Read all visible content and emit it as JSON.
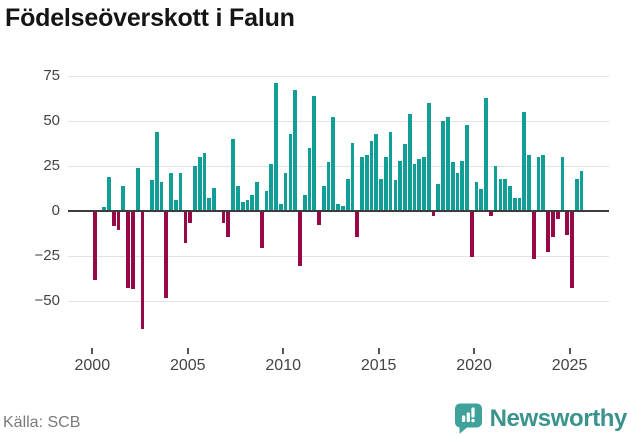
{
  "title": "Födelseöverskott i Falun",
  "source": "Källa: SCB",
  "branding": {
    "name": "Newsworthy"
  },
  "colors": {
    "positive": "#119E96",
    "negative": "#960946",
    "grid": "#e2e2e2",
    "zero_line": "#3c3c3c",
    "axis_text": "#444444",
    "title_text": "#151515",
    "source_text": "#7a7a7a",
    "brand_text": "#3A938C",
    "brand_icon_bg": "#3FA29A",
    "background": "#ffffff"
  },
  "chart_data": {
    "type": "bar",
    "title": "Födelseöverskott i Falun",
    "series_name": "Födelseöverskott (födda minus döda)",
    "frequency": "quarterly",
    "start_period": "2000 Q1",
    "end_period": "2025 Q3",
    "x_tick_labels": [
      "2000",
      "2005",
      "2010",
      "2015",
      "2020",
      "2025"
    ],
    "x_tick_years": [
      2000,
      2005,
      2010,
      2015,
      2020,
      2025
    ],
    "y_tick_values": [
      75,
      50,
      25,
      0,
      -25,
      -50
    ],
    "y_tick_labels": [
      "75",
      "50",
      "25",
      "0",
      "−25",
      "−50"
    ],
    "ylim": [
      -68,
      78
    ],
    "grid": true,
    "legend": false,
    "values": [
      -38,
      0,
      2,
      19,
      -8,
      -10,
      14,
      -42,
      -43,
      24,
      -65,
      0,
      17,
      44,
      16,
      -48,
      21,
      6,
      21,
      -17,
      -6,
      25,
      30,
      32,
      7,
      13,
      0,
      -6,
      -14,
      40,
      14,
      5,
      6,
      9,
      16,
      -20,
      11,
      26,
      71,
      4,
      21,
      43,
      67,
      -30,
      9,
      35,
      64,
      -7,
      14,
      27,
      52,
      4,
      3,
      18,
      38,
      -14,
      30,
      31,
      39,
      43,
      18,
      30,
      44,
      17,
      28,
      37,
      54,
      26,
      29,
      30,
      60,
      -2,
      15,
      50,
      52,
      27,
      21,
      28,
      48,
      -25,
      16,
      12,
      63,
      -2,
      25,
      18,
      18,
      14,
      7,
      7,
      55,
      31,
      -26,
      30,
      31,
      -22,
      -14,
      -4,
      30,
      -13,
      -42,
      18,
      22
    ]
  }
}
